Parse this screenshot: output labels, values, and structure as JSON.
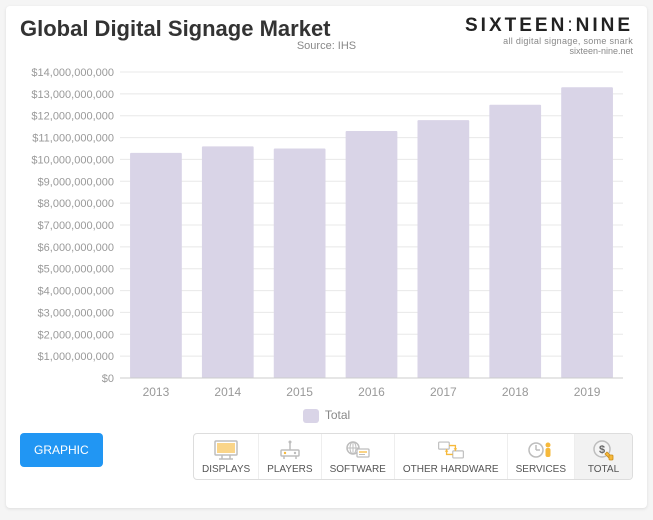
{
  "header": {
    "title": "Global Digital Signage Market",
    "source": "Source: IHS"
  },
  "logo": {
    "main_left": "SIXTEEN",
    "main_right": "NINE",
    "tagline": "all digital signage, some snark",
    "url": "sixteen-nine.net"
  },
  "chart": {
    "type": "bar",
    "categories": [
      "2013",
      "2014",
      "2015",
      "2016",
      "2017",
      "2018",
      "2019"
    ],
    "values": [
      10300000000,
      10600000000,
      10500000000,
      11300000000,
      11800000000,
      12500000000,
      13300000000
    ],
    "bar_color": "#d9d4e7",
    "bar_width": 0.72,
    "background_color": "#ffffff",
    "grid_color": "#e8e8e8",
    "axis_text_color": "#999999",
    "ylim": [
      0,
      14000000000
    ],
    "ytick_step": 1000000000,
    "ytick_labels": [
      "$0",
      "$1,000,000,000",
      "$2,000,000,000",
      "$3,000,000,000",
      "$4,000,000,000",
      "$5,000,000,000",
      "$6,000,000,000",
      "$7,000,000,000",
      "$8,000,000,000",
      "$9,000,000,000",
      "$10,000,000,000",
      "$11,000,000,000",
      "$12,000,000,000",
      "$13,000,000,000",
      "$14,000,000,000"
    ],
    "label_fontsize": 11
  },
  "legend": {
    "label": "Total"
  },
  "bottom": {
    "graphic_button": "GRAPHIC",
    "tabs": [
      {
        "label": "DISPLAYS"
      },
      {
        "label": "PLAYERS"
      },
      {
        "label": "SOFTWARE"
      },
      {
        "label": "OTHER HARDWARE"
      },
      {
        "label": "SERVICES"
      },
      {
        "label": "TOTAL"
      }
    ],
    "active_tab_index": 5,
    "icon_stroke": "#bdbdbd",
    "icon_accent": "#f6b93b"
  }
}
